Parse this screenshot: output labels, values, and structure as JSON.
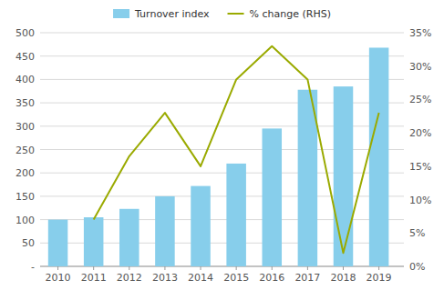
{
  "chart_data": {
    "type": "bar",
    "x": [
      2010,
      2011,
      2012,
      2013,
      2014,
      2015,
      2016,
      2017,
      2018,
      2019
    ],
    "xlim": [
      2009.5,
      2019.7
    ],
    "xticks": [
      2010,
      2011,
      2012,
      2013,
      2014,
      2015,
      2016,
      2017,
      2018,
      2019
    ],
    "series": [
      {
        "name": "Turnover index",
        "type": "bar",
        "color": "#87CEEB",
        "values": [
          100,
          105,
          123,
          150,
          172,
          220,
          295,
          378,
          385,
          468
        ]
      },
      {
        "name": "% change (RHS)",
        "type": "line",
        "color": "#9aaa00",
        "axis": "y2",
        "values": [
          null,
          7.0,
          16.5,
          23.0,
          15.0,
          28.0,
          33.0,
          28.0,
          2.0,
          23.0
        ]
      }
    ],
    "ylim": [
      0,
      500
    ],
    "yticks": [
      {
        "value": 0,
        "label": "-"
      },
      50,
      100,
      150,
      200,
      250,
      300,
      350,
      400,
      450,
      500
    ],
    "y2lim": [
      0,
      35
    ],
    "y2ticks": [
      {
        "value": 0,
        "label": "0%"
      },
      {
        "value": 5,
        "label": "5%"
      },
      {
        "value": 10,
        "label": "10%"
      },
      {
        "value": 15,
        "label": "15%"
      },
      {
        "value": 20,
        "label": "20%"
      },
      {
        "value": 25,
        "label": "25%"
      },
      {
        "value": 30,
        "label": "30%"
      },
      {
        "value": 35,
        "label": "35%"
      }
    ],
    "grid": true,
    "legend": "top"
  }
}
